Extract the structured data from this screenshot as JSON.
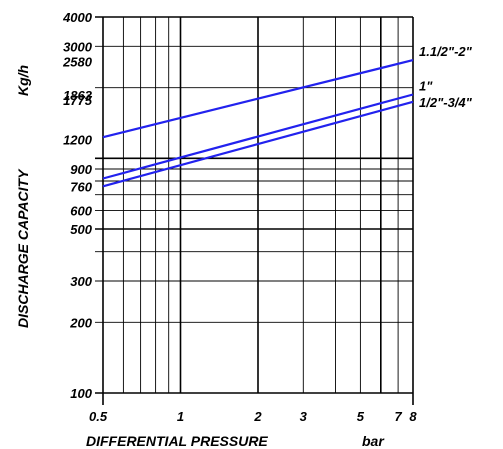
{
  "chart_data": {
    "type": "line",
    "x_scale": "log",
    "y_scale": "log",
    "xlabel": "DIFFERENTIAL PRESSURE",
    "xunit": "bar",
    "ylabel": "DISCHARGE CAPACITY",
    "yunit": "Kg/h",
    "xlim": [
      0.5,
      8
    ],
    "ylim": [
      100,
      4000
    ],
    "grid": true,
    "x_ticks": [
      0.5,
      1,
      2,
      3,
      5,
      7,
      8
    ],
    "x_tick_labels": [
      "0.5",
      "1",
      "2",
      "3",
      "5",
      "7",
      "8"
    ],
    "x_gridlines": [
      0.5,
      0.6,
      0.7,
      0.8,
      0.9,
      1,
      2,
      3,
      4,
      5,
      6,
      7,
      8
    ],
    "y_ticks": [
      100,
      200,
      300,
      500,
      600,
      760,
      900,
      1200,
      1775,
      1863,
      2580,
      3000,
      4000
    ],
    "y_tick_labels": [
      "100",
      "200",
      "300",
      "500",
      "600",
      "760",
      "900",
      "1200",
      "1775",
      "1863",
      "2580",
      "3000",
      "4000"
    ],
    "y_gridlines": [
      100,
      200,
      300,
      400,
      500,
      600,
      700,
      800,
      900,
      1000,
      2000,
      3000,
      4000
    ],
    "series": [
      {
        "name": "1.1/2\"-2\"",
        "color": "#2222ee",
        "x": [
          0.5,
          8
        ],
        "y": [
          1230,
          2620
        ]
      },
      {
        "name": "1\"",
        "color": "#2222ee",
        "x": [
          0.5,
          8
        ],
        "y": [
          820,
          1870
        ]
      },
      {
        "name": "1/2\"-3/4\"",
        "color": "#2222ee",
        "x": [
          0.5,
          8
        ],
        "y": [
          760,
          1740
        ]
      }
    ]
  }
}
